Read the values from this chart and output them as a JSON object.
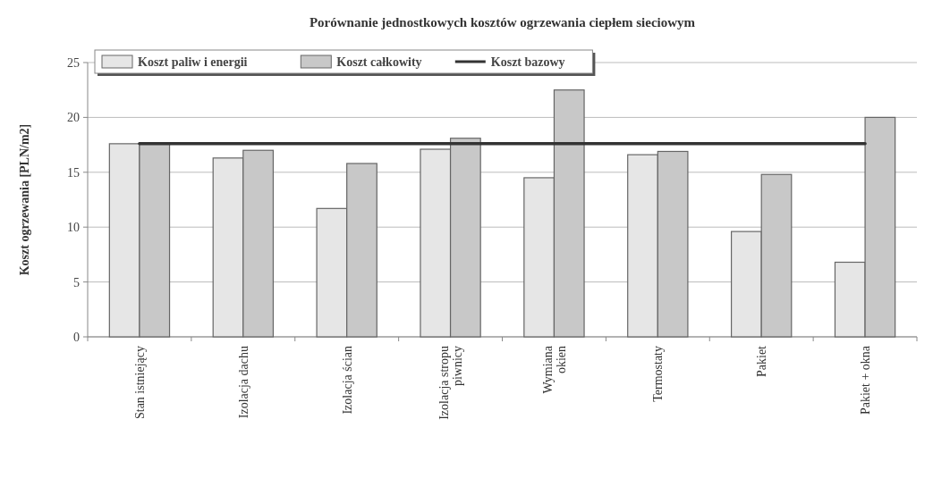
{
  "chart_data": {
    "type": "bar",
    "title": "Porównanie jednostkowych kosztów ogrzewania ciepłem sieciowym",
    "ylabel": "Koszt ogrzewania [PLN/m2]",
    "categories": [
      "Stan istniejący",
      "Izolacja dachu",
      "Izolacja ścian",
      "Izolacja stropu\npiwnicy",
      "Wymiana\nokien",
      "Termostaty",
      "Pakiet",
      "Pakiet + okna"
    ],
    "series": [
      {
        "name": "Koszt paliw i energii",
        "color": "#e6e6e6",
        "values": [
          17.6,
          16.3,
          11.7,
          17.1,
          14.5,
          16.6,
          9.6,
          6.8
        ]
      },
      {
        "name": "Koszt całkowity",
        "color": "#c8c8c8",
        "values": [
          17.7,
          17.0,
          15.8,
          18.1,
          22.5,
          16.9,
          14.8,
          20.0
        ]
      },
      {
        "name": "Koszt bazowy",
        "type": "line",
        "color": "#333333",
        "values": [
          17.6,
          17.6,
          17.6,
          17.6,
          17.6,
          17.6,
          17.6,
          17.6
        ]
      }
    ],
    "ylim": [
      0,
      25
    ],
    "yticks": [
      0,
      5,
      10,
      15,
      20,
      25
    ],
    "grid": "y",
    "legend": "top left"
  }
}
